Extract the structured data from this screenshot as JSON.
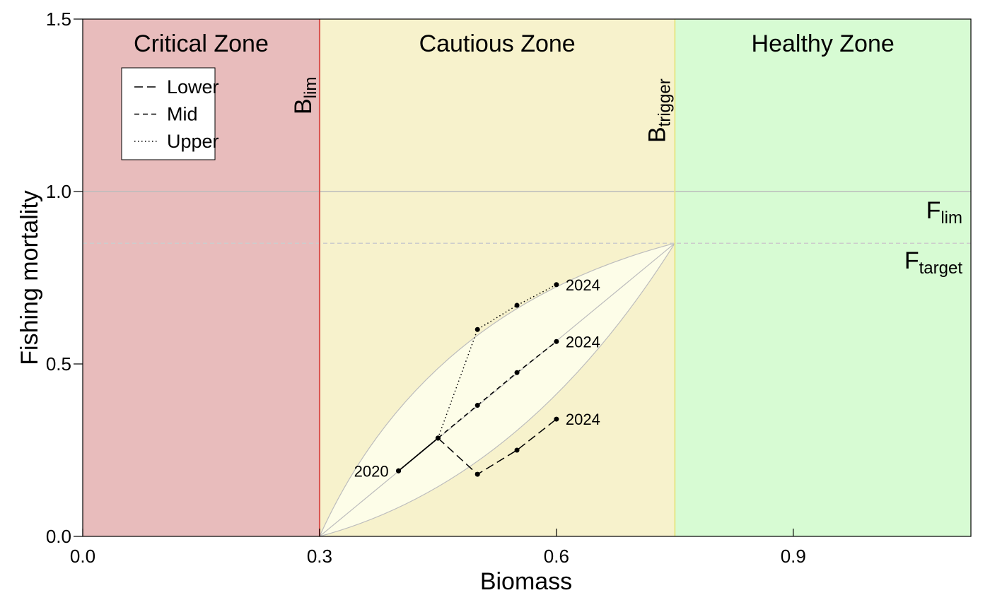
{
  "chart_data": {
    "type": "line",
    "xlabel": "Biomass",
    "ylabel": "Fishing mortality",
    "xlim": [
      0.0,
      1.125
    ],
    "ylim": [
      0.0,
      1.5
    ],
    "xticks": [
      0.0,
      0.3,
      0.6,
      0.9
    ],
    "xtick_labels": [
      "0.0",
      "0.3",
      "0.6",
      "0.9"
    ],
    "yticks": [
      0.0,
      0.5,
      1.0,
      1.5
    ],
    "ytick_labels": [
      "0.0",
      "0.5",
      "1.0",
      "1.5"
    ],
    "grid": false,
    "zones": [
      {
        "label": "Critical Zone",
        "x_from": 0.0,
        "x_to": 0.3,
        "color": "#e8bcbc"
      },
      {
        "label": "Cautious Zone",
        "x_from": 0.3,
        "x_to": 0.75,
        "color": "#f7f2cc"
      },
      {
        "label": "Healthy Zone",
        "x_from": 0.75,
        "x_to": 1.125,
        "color": "#d7fbd3"
      }
    ],
    "reference_lines": {
      "b_lim": {
        "value": 0.3,
        "main": "B",
        "sub": "lim",
        "color": "#d9534f"
      },
      "b_trigger": {
        "value": 0.75,
        "main": "B",
        "sub": "trigger",
        "color": "#e6e68a"
      },
      "f_lim": {
        "value": 1.0,
        "main": "F",
        "sub": "lim",
        "color": "#bbbbbb"
      },
      "f_target": {
        "value": 0.85,
        "main": "F",
        "sub": "target",
        "color": "#cccccc"
      }
    },
    "envelope": {
      "start": [
        0.3,
        0.0
      ],
      "end": [
        0.75,
        0.85
      ],
      "upper_control": [
        0.43,
        0.66
      ],
      "lower_control": [
        0.56,
        0.16
      ],
      "fill": "#fdfde8",
      "stroke": "#bdbdbd"
    },
    "series": [
      {
        "name": "Lower",
        "dash": "long",
        "x": [
          0.4,
          0.45,
          0.5,
          0.55,
          0.6
        ],
        "y": [
          0.19,
          0.285,
          0.18,
          0.25,
          0.34
        ]
      },
      {
        "name": "Mid",
        "dash": "short",
        "x": [
          0.4,
          0.45,
          0.5,
          0.55,
          0.6
        ],
        "y": [
          0.19,
          0.285,
          0.38,
          0.475,
          0.565
        ]
      },
      {
        "name": "Upper",
        "dash": "dotted",
        "x": [
          0.4,
          0.45,
          0.5,
          0.55,
          0.6
        ],
        "y": [
          0.19,
          0.285,
          0.6,
          0.67,
          0.73
        ]
      }
    ],
    "annotations": [
      {
        "text": "2020",
        "x": 0.4,
        "y": 0.19,
        "side": "left"
      },
      {
        "text": "2024",
        "x": 0.6,
        "y": 0.73,
        "side": "right"
      },
      {
        "text": "2024",
        "x": 0.6,
        "y": 0.565,
        "side": "right"
      },
      {
        "text": "2024",
        "x": 0.6,
        "y": 0.34,
        "side": "right"
      }
    ],
    "legend": {
      "placement": "top-left",
      "entries": [
        {
          "label": "Lower",
          "dash": "long"
        },
        {
          "label": "Mid",
          "dash": "short"
        },
        {
          "label": "Upper",
          "dash": "dotted"
        }
      ]
    }
  }
}
